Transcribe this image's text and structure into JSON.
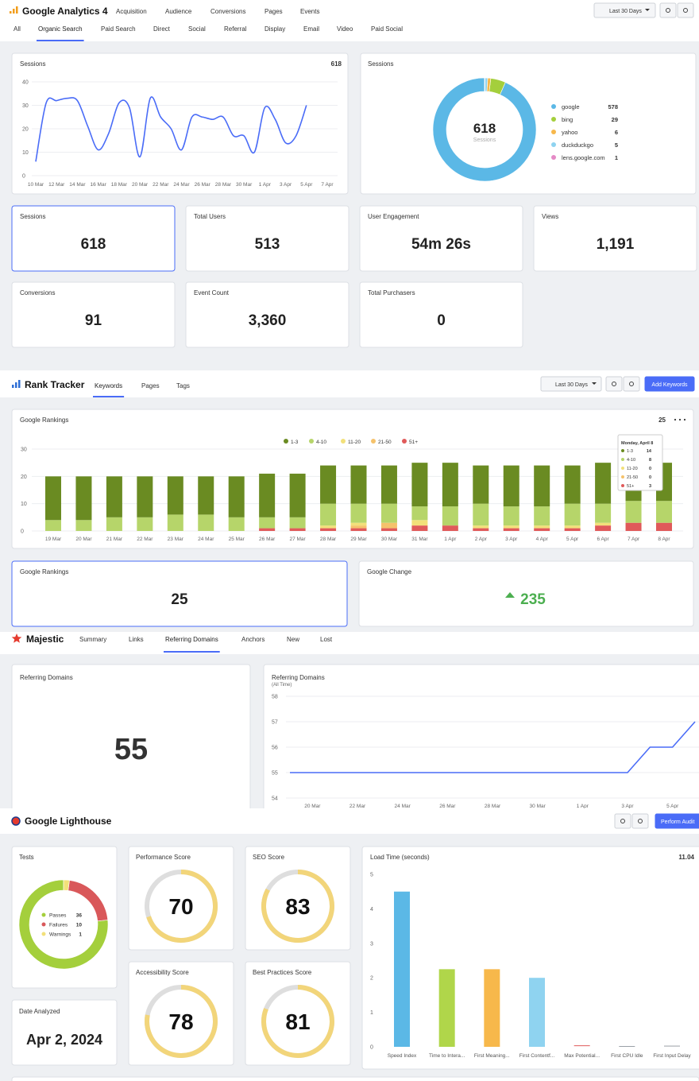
{
  "analytics": {
    "title": "Google Analytics 4",
    "nav": [
      "Acquisition",
      "Audience",
      "Conversions",
      "Pages",
      "Events"
    ],
    "date_button": "Last 30 Days",
    "tabs": [
      "All",
      "Organic Search",
      "Paid Search",
      "Direct",
      "Social",
      "Referral",
      "Display",
      "Email",
      "Video",
      "Paid Social"
    ],
    "kpis": [
      {
        "label": "Sessions",
        "value": "618"
      },
      {
        "label": "Total Users",
        "value": "513"
      },
      {
        "label": "User Engagement",
        "value": "54m 26s"
      },
      {
        "label": "Views",
        "value": "1,191"
      },
      {
        "label": "Conversions",
        "value": "91"
      },
      {
        "label": "Event Count",
        "value": "3,360"
      },
      {
        "label": "Total Purchasers",
        "value": "0"
      }
    ]
  },
  "rank_tracker": {
    "title": "Rank Tracker",
    "tabs": [
      "Keywords",
      "Pages",
      "Tags"
    ],
    "date_button": "Last 30 Days",
    "add_button": "Add Keywords",
    "kpis": [
      {
        "label": "Google Rankings",
        "value": "25"
      },
      {
        "label": "Google Change",
        "value": "235"
      }
    ]
  },
  "majestic": {
    "title": "Majestic",
    "tabs": [
      "Summary",
      "Links",
      "Referring Domains",
      "Anchors",
      "New",
      "Lost"
    ],
    "referring_domains": {
      "label": "Referring Domains",
      "value": "55"
    }
  },
  "lighthouse": {
    "title": "Google Lighthouse",
    "audit_button": "Perform Audit",
    "scores": [
      {
        "label": "Performance Score",
        "value": 70
      },
      {
        "label": "SEO Score",
        "value": 83
      },
      {
        "label": "Accessibility Score",
        "value": 78
      },
      {
        "label": "Best Practices Score",
        "value": 81
      }
    ],
    "date": {
      "label": "Date Analyzed",
      "value": "Apr 2, 2024"
    }
  },
  "chart_data": [
    {
      "type": "line",
      "title": "Sessions",
      "total": "618",
      "categories": [
        "10 Mar",
        null,
        "12 Mar",
        null,
        "14 Mar",
        null,
        "16 Mar",
        null,
        "18 Mar",
        null,
        "20 Mar",
        null,
        "22 Mar",
        null,
        "24 Mar",
        null,
        "26 Mar",
        null,
        "28 Mar",
        null,
        "30 Mar",
        null,
        "1 Apr",
        null,
        "3 Apr",
        null,
        "5 Apr",
        null,
        "7 Apr"
      ],
      "values": [
        6,
        31,
        32,
        33,
        32,
        21,
        11,
        18,
        31,
        29,
        8,
        33,
        25,
        20,
        11,
        25,
        25,
        24,
        25,
        17,
        17,
        10,
        29,
        24,
        14,
        17,
        30,
        null,
        null
      ],
      "color": "#4a6cf7",
      "ylim": [
        0,
        40
      ],
      "yticks": [
        0,
        10,
        20,
        30,
        40
      ],
      "grid": true
    },
    {
      "type": "donut",
      "title": "Sessions",
      "center_value": "618",
      "center_label": "Sessions",
      "categories": [
        "google",
        "bing",
        "yahoo",
        "duckduckgo",
        "lens.google.com"
      ],
      "values": [
        578,
        29,
        6,
        5,
        1
      ],
      "colors": [
        "#5bb8e6",
        "#a4cf3c",
        "#f7b84b",
        "#8fd3f0",
        "#e58ac6"
      ]
    },
    {
      "type": "stacked-bar",
      "title": "Google Rankings",
      "total": "25",
      "tooltip_title": "Monday, April 8",
      "categories": [
        "19 Mar",
        "20 Mar",
        "21 Mar",
        "22 Mar",
        "23 Mar",
        "24 Mar",
        "25 Mar",
        "26 Mar",
        "27 Mar",
        "28 Mar",
        "29 Mar",
        "30 Mar",
        "31 Mar",
        "1 Apr",
        "2 Apr",
        "3 Apr",
        "4 Apr",
        "5 Apr",
        "6 Apr",
        "7 Apr",
        "8 Apr"
      ],
      "series": [
        {
          "name": "1-3",
          "color": "#6a8b22",
          "values": [
            16,
            16,
            15,
            15,
            14,
            14,
            15,
            16,
            16,
            14,
            14,
            14,
            16,
            16,
            14,
            15,
            15,
            14,
            15,
            14,
            14
          ]
        },
        {
          "name": "4-10",
          "color": "#b6d56a",
          "values": [
            4,
            4,
            5,
            5,
            6,
            6,
            5,
            4,
            4,
            8,
            7,
            7,
            5,
            7,
            8,
            7,
            7,
            8,
            7,
            8,
            8
          ]
        },
        {
          "name": "11-20",
          "color": "#f2e07a",
          "values": [
            0,
            0,
            0,
            0,
            0,
            0,
            0,
            0,
            0,
            1,
            1,
            0,
            2,
            0,
            1,
            1,
            1,
            1,
            1,
            0,
            0
          ]
        },
        {
          "name": "21-50",
          "color": "#f5c26b",
          "values": [
            0,
            0,
            0,
            0,
            0,
            0,
            0,
            0,
            0,
            0,
            1,
            2,
            0,
            0,
            0,
            0,
            0,
            0,
            0,
            0,
            0
          ]
        },
        {
          "name": "51+",
          "color": "#e05a5a",
          "values": [
            0,
            0,
            0,
            0,
            0,
            0,
            0,
            1,
            1,
            1,
            1,
            1,
            2,
            2,
            1,
            1,
            1,
            1,
            2,
            3,
            3
          ]
        }
      ],
      "ylim": [
        0,
        30
      ],
      "yticks": [
        0,
        10,
        20,
        30
      ],
      "grid": true
    },
    {
      "type": "line",
      "title": "Referring Domains",
      "subtitle": "(All Time)",
      "categories": [
        null,
        "20 Mar",
        null,
        "22 Mar",
        null,
        "24 Mar",
        null,
        "26 Mar",
        null,
        "28 Mar",
        null,
        "30 Mar",
        null,
        "1 Apr",
        null,
        "3 Apr",
        null,
        "5 Apr",
        null
      ],
      "values": [
        55,
        55,
        55,
        55,
        55,
        55,
        55,
        55,
        55,
        55,
        55,
        55,
        55,
        55,
        55,
        55,
        56,
        56,
        57
      ],
      "color": "#4a6cf7",
      "ylim": [
        54,
        58
      ],
      "yticks": [
        54,
        55,
        56,
        57,
        58
      ],
      "grid": true
    },
    {
      "type": "donut",
      "title": "Tests",
      "categories": [
        "Passes",
        "Failures",
        "Warnings"
      ],
      "values": [
        36,
        10,
        1
      ],
      "colors": [
        "#a4cf3c",
        "#d9585a",
        "#f2e07a"
      ]
    },
    {
      "type": "bar",
      "title": "Load Time (seconds)",
      "total": "11.04",
      "categories": [
        "Speed Index",
        "Time to Intera...",
        "First Meaning...",
        "First Contentf...",
        "Max Potential...",
        "First CPU Idle",
        "First Input Delay"
      ],
      "values": [
        4.5,
        2.25,
        2.25,
        2.0,
        0.02,
        0,
        0.01
      ],
      "colors": [
        "#5bb8e6",
        "#b0d64a",
        "#f7b84b",
        "#8fd3f0",
        "#e05a5a",
        "#9aa0a6",
        "#9aa0a6"
      ],
      "ylim": [
        0,
        5
      ],
      "yticks": [
        0,
        1,
        2,
        3,
        4,
        5
      ],
      "grid": false
    }
  ]
}
